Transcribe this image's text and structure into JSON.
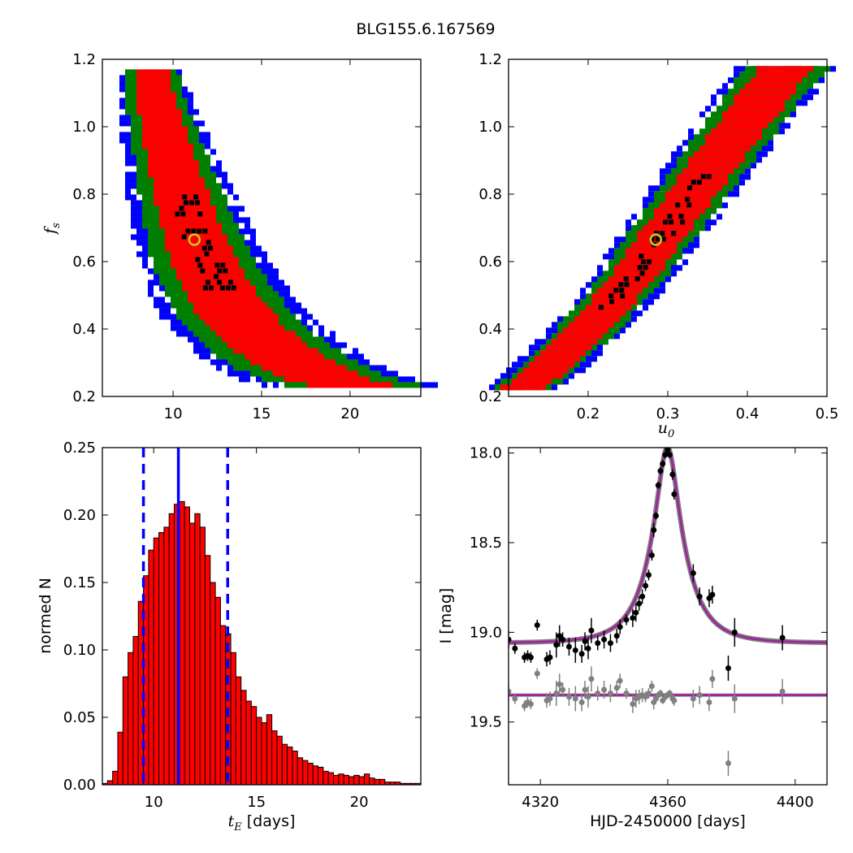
{
  "figure": {
    "title": "BLG155.6.167569"
  },
  "colors": {
    "blue": "#0000ff",
    "green": "#008000",
    "red": "#ff0000",
    "black": "#000000",
    "marker_ring": "#c8c81e",
    "model": "#a020a0",
    "model_band": "#7f7f7f",
    "residuals": "#808080"
  },
  "chart_data": [
    {
      "type": "heatmap",
      "panel": "fs-vs-tE",
      "xlabel": "",
      "ylabel": "f_s",
      "xlim": [
        6,
        24
      ],
      "ylim": [
        0.2,
        1.2
      ],
      "xticks": [
        10,
        15,
        20
      ],
      "yticks": [
        0.2,
        0.4,
        0.6,
        0.8,
        1.0,
        1.2
      ],
      "xtick_labels": [
        "10",
        "15",
        "20"
      ],
      "ytick_labels": [
        "0.2",
        "0.4",
        "0.6",
        "0.8",
        "1.0",
        "1.2"
      ],
      "best_fit": {
        "x": 11.2,
        "y": 0.665
      },
      "ridge": [
        [
          8.8,
          1.17
        ],
        [
          9.2,
          1.05
        ],
        [
          9.7,
          0.95
        ],
        [
          10.3,
          0.84
        ],
        [
          10.9,
          0.73
        ],
        [
          11.5,
          0.64
        ],
        [
          12.2,
          0.56
        ],
        [
          13.0,
          0.49
        ],
        [
          14.0,
          0.42
        ],
        [
          15.3,
          0.36
        ],
        [
          17.0,
          0.3
        ],
        [
          18.7,
          0.26
        ],
        [
          20.2,
          0.24
        ],
        [
          21.2,
          0.23
        ]
      ],
      "confidence_levels": [
        "black",
        "red",
        "green",
        "blue"
      ]
    },
    {
      "type": "heatmap",
      "panel": "fs-vs-u0",
      "xlabel": "u_0",
      "ylabel": "",
      "xlim": [
        0.1,
        0.5
      ],
      "ylim": [
        0.2,
        1.2
      ],
      "xticks": [
        0.2,
        0.3,
        0.4,
        0.5
      ],
      "yticks": [
        0.2,
        0.4,
        0.6,
        0.8,
        1.0,
        1.2
      ],
      "xtick_labels": [
        "0.2",
        "0.3",
        "0.4",
        "0.5"
      ],
      "ytick_labels": [
        "0.2",
        "0.4",
        "0.6",
        "0.8",
        "1.0",
        "1.2"
      ],
      "best_fit": {
        "x": 0.285,
        "y": 0.665
      },
      "ridge": [
        [
          0.115,
          0.23
        ],
        [
          0.14,
          0.27
        ],
        [
          0.17,
          0.34
        ],
        [
          0.2,
          0.41
        ],
        [
          0.23,
          0.49
        ],
        [
          0.26,
          0.57
        ],
        [
          0.285,
          0.665
        ],
        [
          0.31,
          0.74
        ],
        [
          0.34,
          0.84
        ],
        [
          0.37,
          0.94
        ],
        [
          0.4,
          1.03
        ],
        [
          0.43,
          1.13
        ],
        [
          0.45,
          1.18
        ]
      ],
      "confidence_levels": [
        "black",
        "red",
        "green",
        "blue"
      ]
    },
    {
      "type": "bar",
      "panel": "tE-histogram",
      "xlabel": "t_E",
      "xlabel_suffix": "[days]",
      "ylabel": "normed N",
      "xlim": [
        7.5,
        23
      ],
      "ylim": [
        0,
        0.25
      ],
      "xticks": [
        10,
        15,
        20
      ],
      "yticks": [
        0,
        0.05,
        0.1,
        0.15,
        0.2,
        0.25
      ],
      "xtick_labels": [
        "10",
        "15",
        "20"
      ],
      "ytick_labels": [
        "0.00",
        "0.05",
        "0.10",
        "0.15",
        "0.20",
        "0.25"
      ],
      "bin_start": 7.5,
      "bin_width": 0.25,
      "values": [
        0.001,
        0.003,
        0.01,
        0.039,
        0.08,
        0.098,
        0.11,
        0.136,
        0.155,
        0.174,
        0.183,
        0.187,
        0.191,
        0.201,
        0.208,
        0.21,
        0.206,
        0.194,
        0.201,
        0.191,
        0.17,
        0.15,
        0.139,
        0.118,
        0.112,
        0.098,
        0.08,
        0.07,
        0.062,
        0.058,
        0.05,
        0.046,
        0.052,
        0.04,
        0.036,
        0.03,
        0.028,
        0.025,
        0.02,
        0.018,
        0.016,
        0.014,
        0.013,
        0.01,
        0.009,
        0.007,
        0.008,
        0.007,
        0.006,
        0.007,
        0.006,
        0.008,
        0.005,
        0.004,
        0.004,
        0.002,
        0.002,
        0.002,
        0.001,
        0.001,
        0.001,
        0.001
      ],
      "median": 11.2,
      "lower": 9.5,
      "upper": 13.6
    },
    {
      "type": "scatter",
      "panel": "light-curve",
      "xlabel": "HJD-2450000 [days]",
      "ylabel": "I [mag]",
      "xlim": [
        4310,
        4410
      ],
      "ylim": [
        19.85,
        17.97
      ],
      "xticks": [
        4320,
        4360,
        4400
      ],
      "yticks": [
        18.0,
        18.5,
        19.0,
        19.5
      ],
      "xtick_labels": [
        "4320",
        "4360",
        "4400"
      ],
      "ytick_labels": [
        "18.0",
        "18.5",
        "19.0",
        "19.5"
      ],
      "model": {
        "peak_time": 4359.9,
        "tE": 11.2,
        "u0": 0.285,
        "fs": 0.665,
        "baseline": 19.06
      },
      "residual_offset": 19.35,
      "series": [
        {
          "role": "data",
          "x": [
            4310,
            4312,
            4315,
            4316,
            4317,
            4319,
            4322,
            4323,
            4325,
            4326,
            4327,
            4329,
            4331,
            4333,
            4334,
            4335,
            4336,
            4338,
            4340,
            4342,
            4344,
            4345,
            4347,
            4349,
            4350,
            4351,
            4352,
            4353,
            4354,
            4355,
            4355.6,
            4356.3,
            4357,
            4357.7,
            4358.4,
            4359.2,
            4359.9,
            4360.6,
            4361.5,
            4362,
            4368,
            4370,
            4373,
            4374,
            4379,
            4381,
            4396
          ],
          "y": [
            19.04,
            19.09,
            19.14,
            19.13,
            19.14,
            18.96,
            19.15,
            19.14,
            19.07,
            19.02,
            19.04,
            19.08,
            19.1,
            19.12,
            19.05,
            19.09,
            18.99,
            19.06,
            19.04,
            19.06,
            19.02,
            18.97,
            18.93,
            18.92,
            18.89,
            18.84,
            18.8,
            18.74,
            18.68,
            18.57,
            18.43,
            18.35,
            18.18,
            18.1,
            18.06,
            18.01,
            17.98,
            18.01,
            18.12,
            18.23,
            18.67,
            18.8,
            18.81,
            18.79,
            19.2,
            19.0,
            19.03
          ],
          "err": [
            0.05,
            0.03,
            0.03,
            0.03,
            0.03,
            0.03,
            0.04,
            0.04,
            0.07,
            0.06,
            0.04,
            0.05,
            0.07,
            0.05,
            0.05,
            0.06,
            0.07,
            0.04,
            0.05,
            0.05,
            0.04,
            0.04,
            0.03,
            0.05,
            0.05,
            0.04,
            0.04,
            0.03,
            0.03,
            0.03,
            0.04,
            0.02,
            0.02,
            0.02,
            0.02,
            0.02,
            0.02,
            0.02,
            0.03,
            0.03,
            0.05,
            0.05,
            0.05,
            0.05,
            0.07,
            0.08,
            0.07
          ]
        },
        {
          "role": "residuals",
          "x": [
            4310,
            4312,
            4315,
            4316,
            4317,
            4319,
            4322,
            4323,
            4325,
            4326,
            4327,
            4329,
            4331,
            4333,
            4334,
            4335,
            4336,
            4338,
            4340,
            4342,
            4344,
            4345,
            4347,
            4349,
            4350,
            4351,
            4352,
            4353,
            4354,
            4355,
            4355.6,
            4356.3,
            4357,
            4357.7,
            4358.4,
            4359.2,
            4359.9,
            4360.6,
            4361.5,
            4362,
            4368,
            4370,
            4373,
            4374,
            4379,
            4381,
            4396
          ],
          "y": [
            19.33,
            19.37,
            19.41,
            19.39,
            19.4,
            19.23,
            19.38,
            19.37,
            19.34,
            19.29,
            19.32,
            19.36,
            19.37,
            19.39,
            19.32,
            19.36,
            19.26,
            19.34,
            19.32,
            19.34,
            19.31,
            19.27,
            19.34,
            19.4,
            19.37,
            19.36,
            19.35,
            19.36,
            19.34,
            19.3,
            19.39,
            19.37,
            19.35,
            19.34,
            19.38,
            19.36,
            19.35,
            19.34,
            19.37,
            19.38,
            19.37,
            19.35,
            19.39,
            19.26,
            19.73,
            19.37,
            19.33
          ],
          "err": [
            0.05,
            0.03,
            0.03,
            0.03,
            0.03,
            0.03,
            0.04,
            0.04,
            0.07,
            0.06,
            0.04,
            0.05,
            0.07,
            0.05,
            0.05,
            0.06,
            0.07,
            0.04,
            0.05,
            0.05,
            0.04,
            0.04,
            0.03,
            0.05,
            0.05,
            0.04,
            0.04,
            0.03,
            0.03,
            0.03,
            0.04,
            0.02,
            0.02,
            0.02,
            0.02,
            0.02,
            0.02,
            0.02,
            0.03,
            0.03,
            0.05,
            0.05,
            0.05,
            0.05,
            0.07,
            0.08,
            0.07
          ]
        }
      ]
    }
  ]
}
